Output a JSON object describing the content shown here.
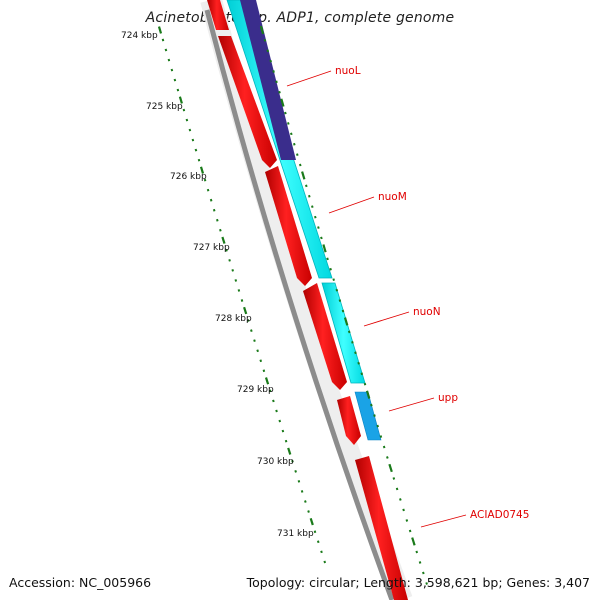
{
  "title": "Acinetobacter sp. ADP1, complete genome",
  "footer": {
    "accession": "Accession: NC_005966",
    "summary": "Topology: circular; Length: 3,598,621 bp; Genes: 3,407"
  },
  "ticks": [
    "724 kbp",
    "725 kbp",
    "726 kbp",
    "727 kbp",
    "728 kbp",
    "729 kbp",
    "730 kbp",
    "731 kbp"
  ],
  "gene_labels": [
    "nuoL",
    "nuoM",
    "nuoN",
    "upp",
    "ACIAD0745"
  ],
  "colors": {
    "forward_gene": "#ff0000",
    "reverse_gene_cyan": "#00ffff",
    "reverse_gene_navy": "#3a2d8c",
    "reverse_gene_blue": "#1aa3e6",
    "backbone": "#888888",
    "ticks": "#1a7a1a",
    "labels": "#e00000"
  }
}
